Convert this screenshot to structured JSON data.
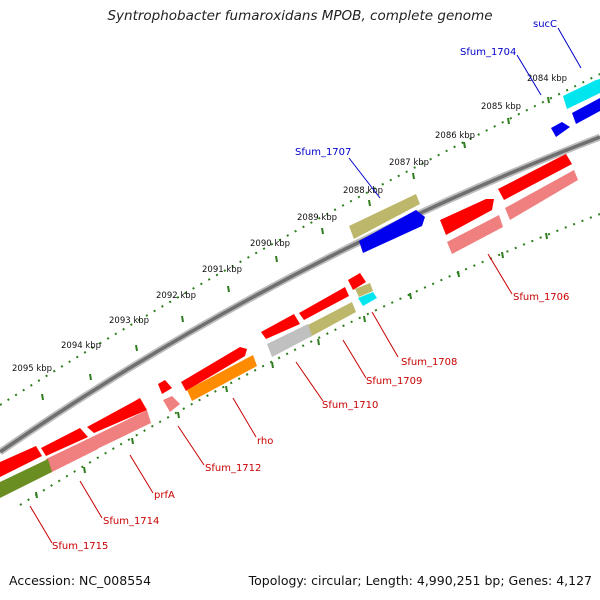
{
  "title": "Syntrophobacter fumaroxidans MPOB, complete genome",
  "footer": {
    "accession": "Accession: NC_008554",
    "topology": "Topology: circular; Length: 4,990,251 bp; Genes: 4,127"
  },
  "colors": {
    "backbone": "#7a7a7a",
    "tick": "#2e7d1e",
    "label_red": "#c80000",
    "label_blue": "#0000c8",
    "red": "#ff0000",
    "pink": "#f08080",
    "blue": "#0000ff",
    "cyan": "#00ffff",
    "khaki": "#bdb76b",
    "silver": "#c0c0c0",
    "orange": "#ff8c00",
    "olive": "#6b8e23"
  },
  "kbp_labels": [
    "2084 kbp",
    "2085 kbp",
    "2086 kbp",
    "2087 kbp",
    "2088 kbp",
    "2089 kbp",
    "2090 kbp",
    "2091 kbp",
    "2092 kbp",
    "2093 kbp",
    "2094 kbp",
    "2095 kbp"
  ],
  "gene_labels": {
    "sucC": "sucC",
    "sfum_1704": "Sfum_1704",
    "sfum_1707": "Sfum_1707",
    "sfum_1706": "Sfum_1706",
    "sfum_1708": "Sfum_1708",
    "sfum_1709": "Sfum_1709",
    "sfum_1710": "Sfum_1710",
    "rho": "rho",
    "sfum_1712": "Sfum_1712",
    "prfA": "prfA",
    "sfum_1714": "Sfum_1714",
    "sfum_1715": "Sfum_1715"
  }
}
